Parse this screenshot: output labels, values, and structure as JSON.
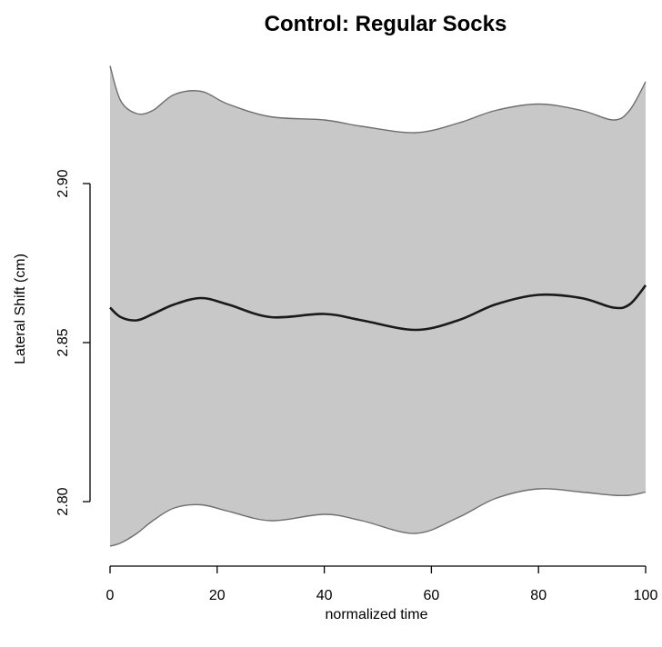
{
  "chart_data": {
    "type": "area",
    "title": "Control: Regular Socks",
    "xlabel": "normalized time",
    "ylabel": "Lateral Shift (cm)",
    "xlim": [
      0,
      100
    ],
    "ylim": [
      2.785,
      2.94
    ],
    "x_ticks": [
      "0",
      "20",
      "40",
      "60",
      "80",
      "100"
    ],
    "y_ticks": [
      "2.80",
      "2.85",
      "2.90"
    ],
    "grid": false,
    "legend": "none",
    "colors": {
      "band_fill": "#c8c8c8",
      "band_edge": "#6e6e6e",
      "mean_line": "#1a1a1a",
      "axis": "#000000"
    },
    "x": [
      0,
      2,
      5,
      8,
      12,
      17,
      22,
      30,
      40,
      47,
      57,
      65,
      72,
      80,
      88,
      94,
      97,
      100
    ],
    "series": [
      {
        "role": "upper_band",
        "values": [
          2.937,
          2.926,
          2.922,
          2.923,
          2.928,
          2.929,
          2.925,
          2.921,
          2.92,
          2.918,
          2.916,
          2.919,
          2.923,
          2.925,
          2.923,
          2.92,
          2.923,
          2.932
        ]
      },
      {
        "role": "mean",
        "values": [
          2.861,
          2.858,
          2.857,
          2.859,
          2.862,
          2.864,
          2.862,
          2.858,
          2.859,
          2.857,
          2.854,
          2.857,
          2.862,
          2.865,
          2.864,
          2.861,
          2.862,
          2.868
        ]
      },
      {
        "role": "lower_band",
        "values": [
          2.786,
          2.787,
          2.79,
          2.794,
          2.798,
          2.799,
          2.797,
          2.794,
          2.796,
          2.794,
          2.79,
          2.795,
          2.801,
          2.804,
          2.803,
          2.802,
          2.802,
          2.803
        ]
      }
    ]
  }
}
